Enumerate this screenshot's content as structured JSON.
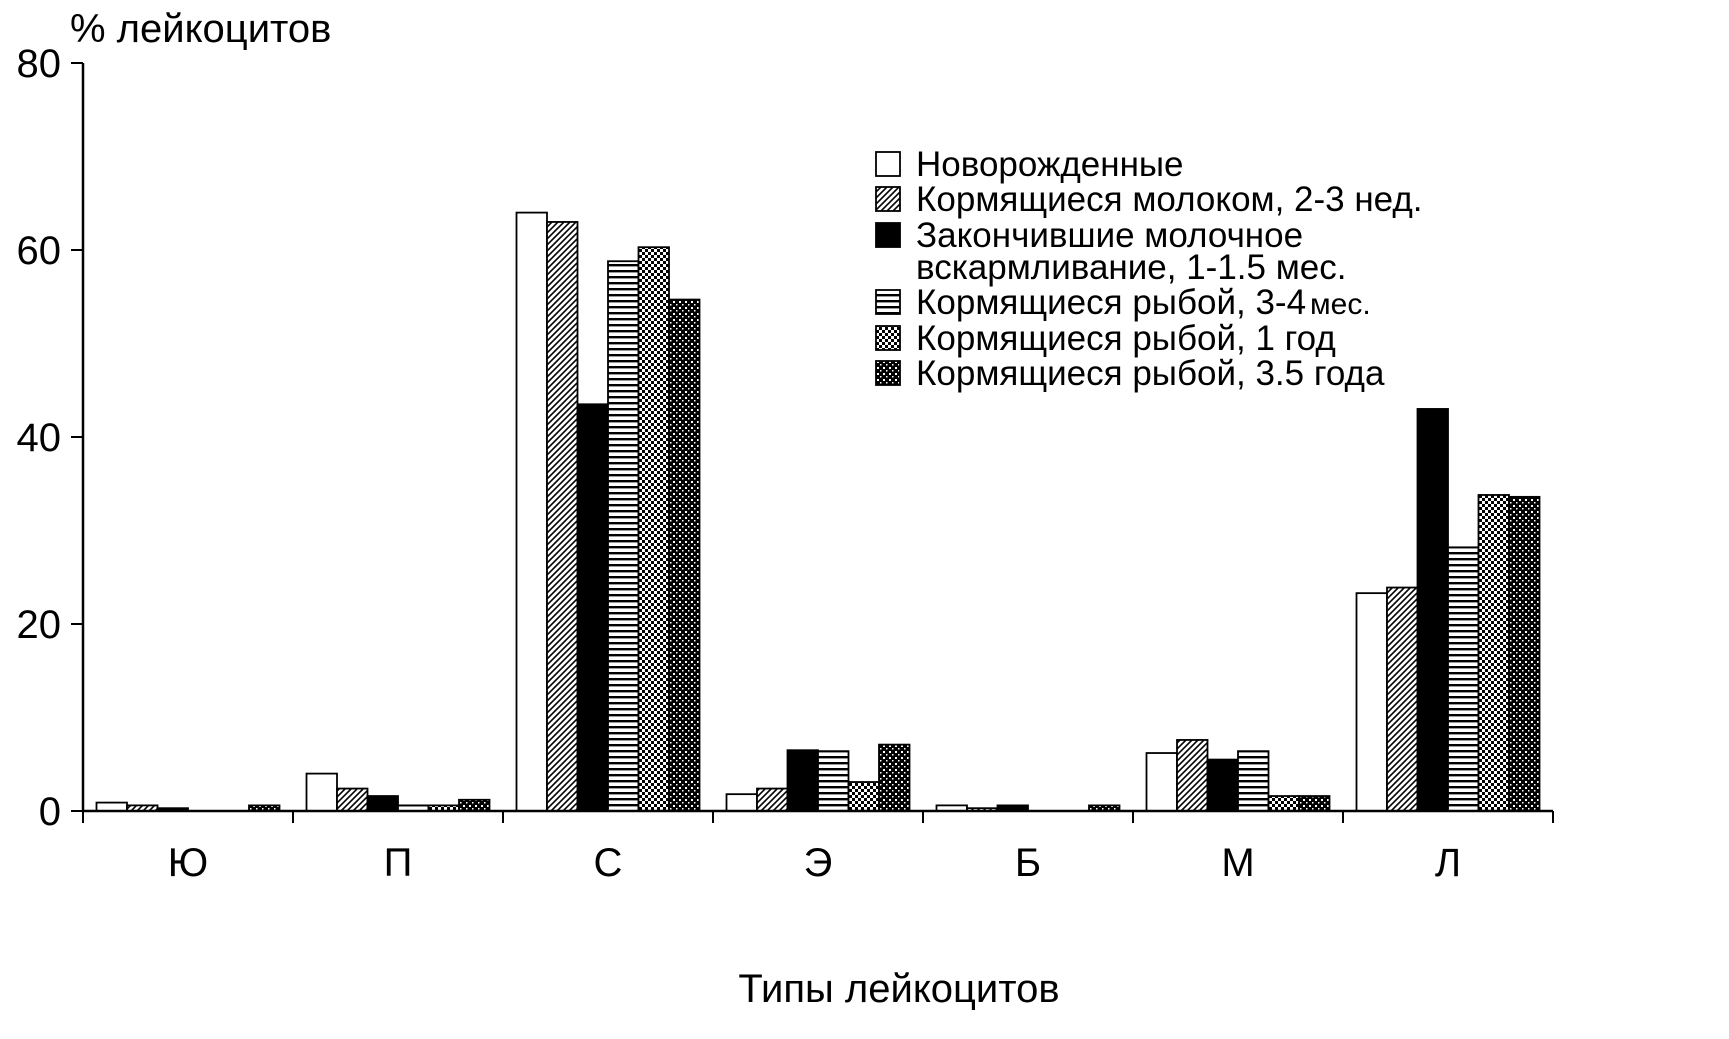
{
  "chart_data": {
    "type": "bar",
    "ylabel": "% лейкоцитов",
    "xlabel": "Типы лейкоцитов",
    "ylim": [
      0,
      80
    ],
    "yticks": [
      "0",
      "20",
      "40",
      "60",
      "80"
    ],
    "categories": [
      "Ю",
      "П",
      "С",
      "Э",
      "Б",
      "М",
      "Л"
    ],
    "legend_position": "upper-right",
    "series": [
      {
        "name": "Новорожденные",
        "pattern": "white",
        "values": [
          0.9,
          4.0,
          64.0,
          1.8,
          0.6,
          6.2,
          23.3
        ]
      },
      {
        "name": "Кормящиеся молоком, 2-3 нед.",
        "pattern": "diagonal",
        "values": [
          0.6,
          2.4,
          63.0,
          2.4,
          0.3,
          7.6,
          23.9
        ]
      },
      {
        "name": "Закончившие молочное",
        "name_line2": "вскармливание, 1-1.5 мес.",
        "pattern": "black",
        "values": [
          0.3,
          1.6,
          43.5,
          6.5,
          0.6,
          5.5,
          43.0
        ]
      },
      {
        "name": "Кормящиеся рыбой, 3-4",
        "name_suffix": "мес.",
        "pattern": "horizontal",
        "values": [
          0.0,
          0.6,
          58.8,
          6.4,
          0.0,
          6.4,
          28.2
        ]
      },
      {
        "name": "Кормящиеся рыбой, 1 год",
        "pattern": "checker",
        "values": [
          0.0,
          0.6,
          60.3,
          3.1,
          0.0,
          1.6,
          33.8
        ]
      },
      {
        "name": "Кормящиеся рыбой, 3.5 года",
        "pattern": "dark-dots",
        "values": [
          0.6,
          1.2,
          54.7,
          7.1,
          0.6,
          1.6,
          33.6
        ]
      }
    ]
  }
}
